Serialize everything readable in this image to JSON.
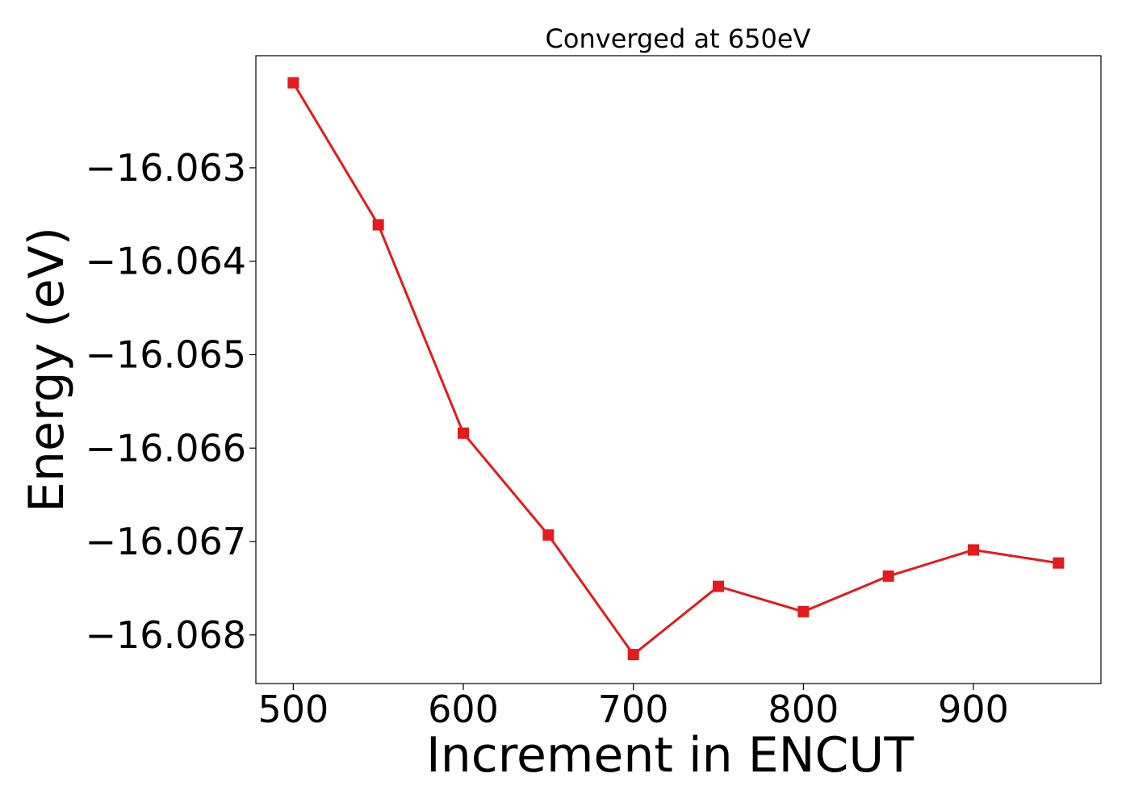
{
  "chart_data": {
    "type": "line",
    "title": "Converged at 650eV",
    "xlabel": "Increment in ENCUT",
    "ylabel": "Energy (eV)",
    "x": [
      500,
      550,
      600,
      650,
      700,
      750,
      800,
      850,
      900,
      950
    ],
    "series": [
      {
        "values": [
          -16.06209,
          -16.06361,
          -16.06584,
          -16.06693,
          -16.06821,
          -16.06748,
          -16.06775,
          -16.06737,
          -16.06709,
          -16.06723
        ]
      }
    ],
    "xlim": [
      478,
      975
    ],
    "ylim": [
      -16.06852,
      -16.0618
    ],
    "xticks": [
      500,
      600,
      700,
      800,
      900
    ],
    "xtick_labels": [
      "500",
      "600",
      "700",
      "800",
      "900"
    ],
    "yticks": [
      -16.063,
      -16.064,
      -16.065,
      -16.066,
      -16.067,
      -16.068
    ],
    "ytick_labels": [
      "−16.063",
      "−16.064",
      "−16.065",
      "−16.066",
      "−16.067",
      "−16.068"
    ],
    "grid": false,
    "line_color": "#e41a1c",
    "marker": "square"
  }
}
